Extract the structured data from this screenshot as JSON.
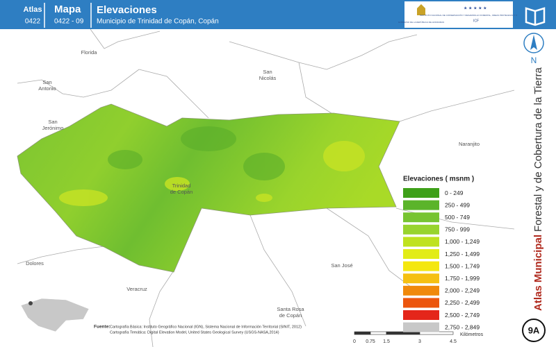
{
  "header": {
    "atlas_label": "Atlas",
    "atlas_code": "0422",
    "mapa_label": "Mapa",
    "mapa_code": "0422 - 09",
    "title": "Elevaciones",
    "subtitle": "Municipio de Trinidad de Copán, Copán",
    "logo_left": "GOBIERNO DE LA REPÚBLICA DE HONDURAS",
    "logo_right": "INSTITUTO NACIONAL DE CONSERVACIÓN Y DESARROLLO FORESTAL, ÁREAS PROTEGIDAS Y VIDA SILVESTRE",
    "logo_acronym": "ICF"
  },
  "sidebar": {
    "north": "N",
    "title_bold": "Atlas Municipal",
    "title_rest": "Forestal y de Cobertura de la Tierra",
    "badge": "9A"
  },
  "places": [
    {
      "lines": [
        "Florida"
      ]
    },
    {
      "lines": [
        "San",
        "Antonio"
      ]
    },
    {
      "lines": [
        "San",
        "Nicolás"
      ]
    },
    {
      "lines": [
        "San",
        "Jerónimo"
      ]
    },
    {
      "lines": [
        "Naranjito"
      ]
    },
    {
      "lines": [
        "Trinidad",
        "de Copán"
      ]
    },
    {
      "lines": [
        "Dolores"
      ]
    },
    {
      "lines": [
        "San José"
      ]
    },
    {
      "lines": [
        "Veracruz"
      ]
    },
    {
      "lines": [
        "Santa Rosa",
        "de Copán"
      ]
    }
  ],
  "legend": {
    "title": "Elevaciones ( msnm )",
    "items": [
      {
        "label": "0 - 249",
        "color": "#3ea019"
      },
      {
        "label": "250 - 499",
        "color": "#5bb42a"
      },
      {
        "label": "500 - 749",
        "color": "#77c431"
      },
      {
        "label": "750 - 999",
        "color": "#98d42e"
      },
      {
        "label": "1,000 - 1,249",
        "color": "#bfe21f"
      },
      {
        "label": "1,250 - 1,499",
        "color": "#e2ec17"
      },
      {
        "label": "1,500 - 1,749",
        "color": "#f4e70f"
      },
      {
        "label": "1,750 - 1,999",
        "color": "#f5c012"
      },
      {
        "label": "2,000 - 2,249",
        "color": "#f0890b"
      },
      {
        "label": "2,250 - 2,499",
        "color": "#ec560e"
      },
      {
        "label": "2,500 - 2,749",
        "color": "#e4261a"
      },
      {
        "label": "2,750 - 2,849",
        "color": "#c8c8c8"
      }
    ]
  },
  "scale": {
    "ticks": [
      "0",
      "0.75",
      "1.5",
      "3",
      "4.5"
    ],
    "unit": "Kilómetros"
  },
  "sources": {
    "label": "Fuente:",
    "lines": [
      "Cartografía Básica: Instituto Geográfico Nacional (IGN), Sistema Nacional de Información Territorial (SINIT, 2012)",
      "Cartografía Temática: Digital Elevation Model, United States Geological Survey (USGS-NASA,2014)"
    ]
  }
}
